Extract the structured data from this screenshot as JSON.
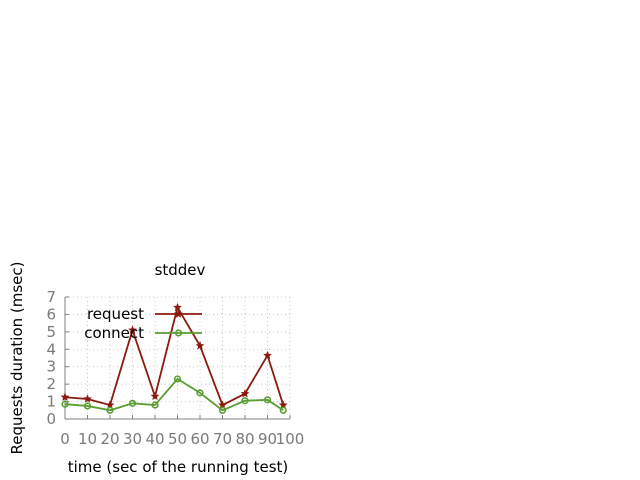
{
  "chart_data": {
    "type": "line",
    "title": "stddev",
    "xlabel": "time (sec of the running test)",
    "ylabel": "Requests duration (msec)",
    "xlim": [
      0,
      100
    ],
    "ylim": [
      0,
      7
    ],
    "x_ticks": [
      "0",
      "10",
      "20",
      "30",
      "40",
      "50",
      "60",
      "70",
      "80",
      "90",
      "100"
    ],
    "y_ticks": [
      "0",
      "1",
      "2",
      "3",
      "4",
      "5",
      "6",
      "7"
    ],
    "grid": true,
    "legend_position": "top-left",
    "x": [
      0,
      10,
      20,
      30,
      40,
      50,
      60,
      70,
      80,
      90,
      97
    ],
    "series": [
      {
        "name": "request",
        "color": "#8b1a0e",
        "marker": "star",
        "values": [
          1.25,
          1.15,
          0.8,
          5.1,
          1.3,
          6.4,
          4.2,
          0.8,
          1.45,
          3.65,
          0.8
        ]
      },
      {
        "name": "connect",
        "color": "#5a9e32",
        "marker": "circle",
        "values": [
          0.85,
          0.75,
          0.5,
          0.9,
          0.8,
          2.3,
          1.5,
          0.5,
          1.05,
          1.1,
          0.5
        ]
      }
    ]
  }
}
